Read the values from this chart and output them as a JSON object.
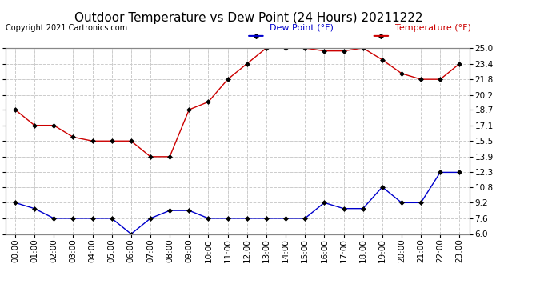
{
  "title": "Outdoor Temperature vs Dew Point (24 Hours) 20211222",
  "copyright": "Copyright 2021 Cartronics.com",
  "legend_dew": "Dew Point (°F)",
  "legend_temp": "Temperature (°F)",
  "hours": [
    "00:00",
    "01:00",
    "02:00",
    "03:00",
    "04:00",
    "05:00",
    "06:00",
    "07:00",
    "08:00",
    "09:00",
    "10:00",
    "11:00",
    "12:00",
    "13:00",
    "14:00",
    "15:00",
    "16:00",
    "17:00",
    "18:00",
    "19:00",
    "20:00",
    "21:00",
    "22:00",
    "23:00"
  ],
  "temperature": [
    18.7,
    17.1,
    17.1,
    15.9,
    15.5,
    15.5,
    15.5,
    13.9,
    13.9,
    18.7,
    19.5,
    21.8,
    23.4,
    25.0,
    25.0,
    25.0,
    24.7,
    24.7,
    25.0,
    23.8,
    22.4,
    21.8,
    21.8,
    23.4
  ],
  "dew_point": [
    9.2,
    8.6,
    7.6,
    7.6,
    7.6,
    7.6,
    6.0,
    7.6,
    8.4,
    8.4,
    7.6,
    7.6,
    7.6,
    7.6,
    7.6,
    7.6,
    9.2,
    8.6,
    8.6,
    10.8,
    9.2,
    9.2,
    12.3,
    12.3
  ],
  "temp_color": "#cc0000",
  "dew_color": "#0000cc",
  "marker": "D",
  "marker_size": 3,
  "ylim": [
    6.0,
    25.0
  ],
  "yticks": [
    6.0,
    7.6,
    9.2,
    10.8,
    12.3,
    13.9,
    15.5,
    17.1,
    18.7,
    20.2,
    21.8,
    23.4,
    25.0
  ],
  "background_color": "#ffffff",
  "grid_color": "#cccccc",
  "title_fontsize": 11,
  "tick_fontsize": 7.5,
  "legend_fontsize": 8,
  "copyright_fontsize": 7
}
